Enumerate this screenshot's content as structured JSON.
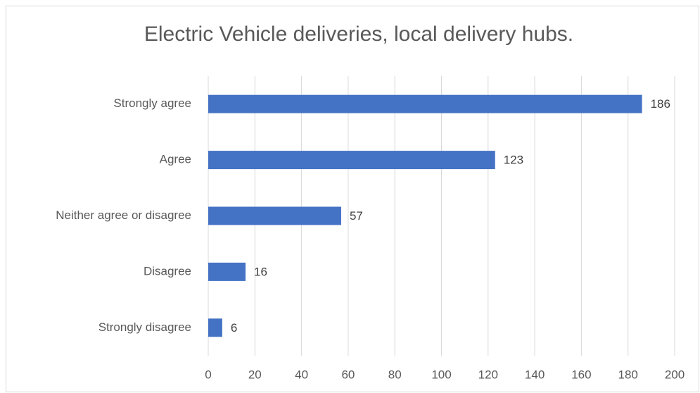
{
  "chart_data": {
    "type": "bar",
    "orientation": "horizontal",
    "title": "Electric Vehicle deliveries, local delivery hubs.",
    "categories": [
      "Strongly agree",
      "Agree",
      "Neither agree or disagree",
      "Disagree",
      "Strongly disagree"
    ],
    "values": [
      186,
      123,
      57,
      16,
      6
    ],
    "color": "#4472c4",
    "xlim": [
      0,
      200
    ],
    "xticks": [
      0,
      20,
      40,
      60,
      80,
      100,
      120,
      140,
      160,
      180,
      200
    ],
    "grid": true
  }
}
